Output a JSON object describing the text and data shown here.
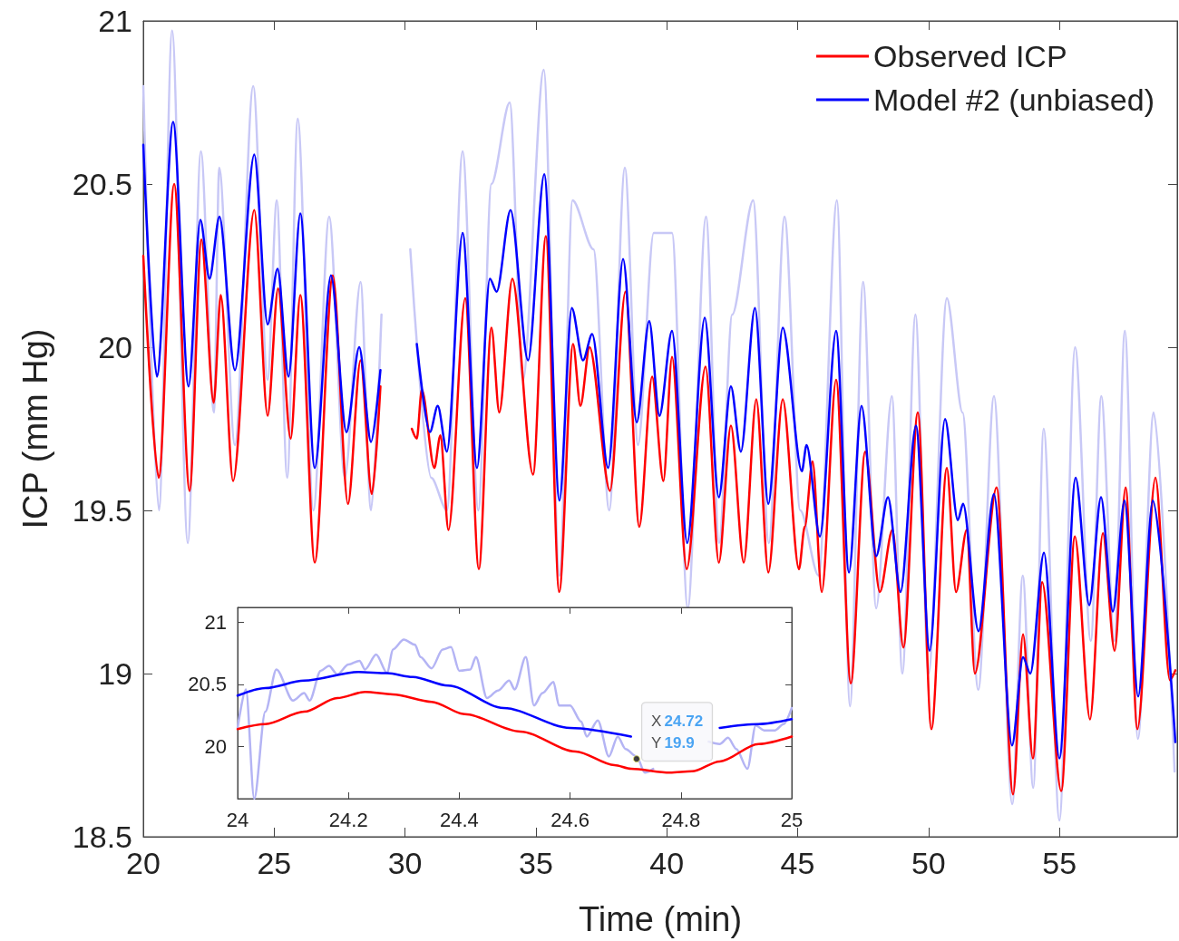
{
  "chart_data": [
    {
      "type": "line",
      "xlabel": "Time (min)",
      "ylabel": "ICP (mm Hg)",
      "xlim": [
        20,
        59.5
      ],
      "xticks": [
        20,
        25,
        30,
        35,
        40,
        45,
        50,
        55
      ],
      "ylim": [
        18.5,
        21
      ],
      "yticks": [
        18.5,
        19,
        19.5,
        20,
        20.5,
        21
      ],
      "grid": false,
      "legend": "top right",
      "marker": "none",
      "line_style": "solid",
      "series": [
        {
          "color": "#c8c8f6",
          "x": [
            20,
            20.6,
            21.1,
            21.7,
            22.2,
            22.7,
            22.9,
            23.5,
            24.2,
            24.75,
            25.1,
            25.5,
            25.9,
            26.5,
            27.1,
            27.7,
            28.3,
            28.7,
            29.1,
            29.5,
            30.2,
            31.0,
            31.6,
            32.2,
            32.8,
            33.3,
            34.0,
            34.5,
            35.3,
            35.9,
            36.4,
            37.2,
            37.8,
            38.4,
            38.9,
            39.5,
            40.2,
            40.8,
            41.5,
            42.0,
            42.5,
            43.3,
            43.9,
            44.5,
            45.1,
            45.8,
            46.5,
            47.0,
            47.5,
            48.0,
            48.6,
            49.0,
            49.5,
            50.0,
            50.7,
            51.3,
            51.9,
            52.5,
            53.2,
            53.6,
            54.0,
            54.4,
            55.0,
            55.6,
            56.2,
            56.6,
            57.1,
            57.5,
            58.0,
            58.6,
            59.4
          ],
          "values": [
            20.8,
            19.5,
            20.97,
            19.4,
            20.6,
            19.8,
            20.55,
            19.7,
            20.8,
            19.9,
            20.45,
            19.6,
            20.7,
            19.5,
            20.4,
            19.6,
            20.2,
            19.5,
            20.1,
            null,
            20.3,
            19.6,
            19.5,
            20.6,
            19.5,
            20.5,
            20.75,
            19.9,
            20.85,
            19.3,
            20.45,
            20.3,
            19.5,
            20.55,
            19.7,
            20.35,
            20.35,
            19.2,
            20.4,
            19.4,
            20.1,
            20.45,
            19.4,
            20.4,
            19.5,
            19.3,
            20.45,
            18.9,
            20.2,
            19.2,
            19.85,
            19.0,
            20.1,
            19.0,
            20.15,
            19.8,
            18.95,
            19.85,
            18.6,
            19.3,
            18.65,
            19.75,
            18.55,
            20.0,
            19.1,
            19.85,
            19.1,
            20.05,
            18.8,
            19.8,
            18.7
          ]
        },
        {
          "name": "Observed ICP",
          "color": "#ff0000",
          "x": [
            20,
            20.59,
            21.18,
            21.77,
            22.22,
            22.69,
            22.96,
            23.43,
            24.24,
            24.75,
            25.15,
            25.63,
            26.0,
            26.55,
            27.24,
            27.82,
            28.3,
            28.73,
            29.06,
            29.5,
            30.26,
            30.45,
            30.64,
            31.12,
            31.35,
            31.66,
            32.3,
            32.82,
            33.3,
            33.6,
            34.1,
            34.89,
            35.38,
            35.89,
            36.42,
            36.7,
            37.05,
            37.83,
            38.42,
            38.95,
            39.44,
            39.87,
            40.2,
            40.76,
            41.48,
            41.99,
            42.45,
            42.94,
            43.42,
            43.88,
            44.43,
            45.05,
            45.27,
            45.57,
            45.92,
            46.47,
            47.03,
            47.58,
            48.14,
            48.62,
            49.04,
            49.59,
            50.11,
            50.7,
            51.05,
            51.46,
            51.77,
            52.6,
            53.23,
            53.61,
            53.99,
            54.34,
            55.07,
            55.59,
            56.17,
            56.66,
            57.11,
            57.53,
            57.98,
            58.67,
            59.22,
            59.43
          ],
          "values": [
            20.28,
            19.6,
            20.5,
            19.56,
            20.33,
            19.83,
            20.16,
            19.59,
            20.42,
            19.79,
            20.18,
            19.72,
            20.16,
            19.34,
            20.22,
            19.52,
            19.96,
            19.55,
            19.88,
            null,
            19.75,
            19.72,
            19.87,
            19.63,
            19.73,
            19.44,
            20.15,
            19.32,
            20.06,
            19.8,
            20.21,
            19.61,
            20.34,
            19.25,
            20.01,
            19.82,
            20.0,
            19.56,
            20.17,
            19.45,
            19.91,
            19.59,
            19.97,
            19.32,
            19.94,
            19.34,
            19.76,
            19.34,
            19.84,
            19.31,
            19.84,
            19.32,
            19.45,
            19.65,
            19.25,
            19.9,
            18.97,
            19.68,
            19.25,
            19.44,
            19.08,
            19.8,
            18.83,
            19.63,
            19.25,
            19.44,
            19.0,
            19.57,
            18.63,
            19.12,
            18.74,
            19.28,
            18.64,
            19.42,
            18.86,
            19.43,
            19.07,
            19.57,
            18.83,
            19.6,
            18.98,
            19.01
          ]
        },
        {
          "name": "Model #2 (unbiased)",
          "color": "#0000ff",
          "x": [
            20,
            20.52,
            21.14,
            21.73,
            22.18,
            22.53,
            22.91,
            23.5,
            24.24,
            24.75,
            25.13,
            25.55,
            26.0,
            26.55,
            27.17,
            27.76,
            28.25,
            28.7,
            29.06,
            29.4,
            30.45,
            30.95,
            31.25,
            31.6,
            32.2,
            32.75,
            33.24,
            33.5,
            34.03,
            34.7,
            35.32,
            35.9,
            36.37,
            36.8,
            37.15,
            37.76,
            38.33,
            38.85,
            39.33,
            39.72,
            40.2,
            40.78,
            41.45,
            41.99,
            42.45,
            42.83,
            43.37,
            43.88,
            44.43,
            45.16,
            45.34,
            45.85,
            46.47,
            46.96,
            47.44,
            48.0,
            48.45,
            48.93,
            49.52,
            50.04,
            50.63,
            51.12,
            51.32,
            51.91,
            52.5,
            53.19,
            53.61,
            53.89,
            54.41,
            55.0,
            55.62,
            56.14,
            56.59,
            57.04,
            57.49,
            58.01,
            58.57,
            59.43
          ],
          "values": [
            20.62,
            19.91,
            20.69,
            19.88,
            20.39,
            20.21,
            20.4,
            19.93,
            20.59,
            20.07,
            20.24,
            19.91,
            20.41,
            19.63,
            20.22,
            19.74,
            20.0,
            19.71,
            19.93,
            null,
            20.01,
            19.74,
            19.82,
            19.68,
            20.35,
            19.63,
            20.21,
            20.17,
            20.42,
            19.96,
            20.53,
            19.53,
            20.12,
            19.96,
            20.04,
            19.63,
            20.27,
            19.77,
            20.08,
            19.79,
            20.05,
            19.4,
            20.09,
            19.54,
            19.88,
            19.68,
            20.12,
            19.52,
            20.06,
            19.62,
            19.7,
            19.42,
            20.05,
            19.31,
            19.82,
            19.36,
            19.54,
            19.25,
            19.76,
            19.07,
            19.78,
            19.47,
            19.52,
            19.13,
            19.55,
            18.78,
            19.05,
            19.0,
            19.37,
            18.74,
            19.6,
            19.21,
            19.54,
            19.19,
            19.53,
            18.93,
            19.53,
            18.79
          ]
        }
      ]
    },
    {
      "type": "line",
      "xlim": [
        24,
        25
      ],
      "xticks": [
        24,
        24.2,
        24.4,
        24.6,
        24.8,
        25
      ],
      "ylim": [
        19.58,
        21.12
      ],
      "yticks": [
        20,
        20.5,
        21
      ],
      "grid": false,
      "marker": "none",
      "line_style": "solid",
      "annotations": [
        {
          "text": "X 24.72\nY 19.9",
          "x": 24.72,
          "y": 19.9
        }
      ],
      "series": [
        {
          "color": "#b4b4f4",
          "x": [
            24,
            24.015,
            24.03,
            24.05,
            24.07,
            24.1,
            24.12,
            24.13,
            24.15,
            24.165,
            24.18,
            24.2,
            24.22,
            24.23,
            24.25,
            24.27,
            24.28,
            24.3,
            24.32,
            24.33,
            24.35,
            24.37,
            24.385,
            24.4,
            24.42,
            24.43,
            24.45,
            24.47,
            24.49,
            24.5,
            24.52,
            24.535,
            24.55,
            24.57,
            24.58,
            24.6,
            24.62,
            24.63,
            24.65,
            24.67,
            24.686,
            24.7,
            24.72,
            24.735,
            24.75,
            24.8,
            24.82,
            24.84,
            24.85,
            24.87,
            24.885,
            24.9,
            24.92,
            24.935,
            24.95,
            24.97,
            24.985,
            25
          ],
          "values": [
            20.15,
            20.46,
            19.58,
            20.28,
            20.62,
            20.37,
            20.43,
            20.37,
            20.61,
            20.65,
            20.58,
            20.66,
            20.69,
            20.62,
            20.74,
            20.59,
            20.78,
            20.86,
            20.82,
            20.72,
            20.63,
            20.78,
            20.8,
            20.61,
            20.62,
            20.72,
            20.39,
            20.45,
            20.53,
            20.46,
            20.72,
            20.33,
            20.43,
            20.52,
            20.33,
            20.33,
            20.2,
            20.08,
            20.21,
            19.92,
            20.08,
            19.98,
            19.92,
            19.79,
            19.82,
            null,
            null,
            null,
            20.04,
            20.02,
            20.07,
            19.98,
            19.82,
            20.17,
            20.13,
            20.13,
            20.18,
            20.31
          ]
        },
        {
          "color": "#ff0000",
          "x": [
            24,
            24.05,
            24.12,
            24.18,
            24.23,
            24.28,
            24.35,
            24.41,
            24.51,
            24.61,
            24.68,
            24.71,
            24.78,
            24.82,
            24.87,
            24.94,
            25
          ],
          "values": [
            20.14,
            20.18,
            20.28,
            20.39,
            20.44,
            20.42,
            20.36,
            20.26,
            20.12,
            19.96,
            19.85,
            19.82,
            19.79,
            19.8,
            19.88,
            20.02,
            20.08
          ]
        },
        {
          "color": "#0000ff",
          "x": [
            24,
            24.05,
            24.12,
            24.218,
            24.27,
            24.316,
            24.38,
            24.48,
            24.6,
            24.71,
            24.77,
            24.87,
            24.94,
            25
          ],
          "values": [
            20.41,
            20.47,
            20.53,
            20.6,
            20.59,
            20.56,
            20.49,
            20.31,
            20.15,
            20.08,
            null,
            20.15,
            20.18,
            20.22
          ]
        }
      ]
    }
  ]
}
